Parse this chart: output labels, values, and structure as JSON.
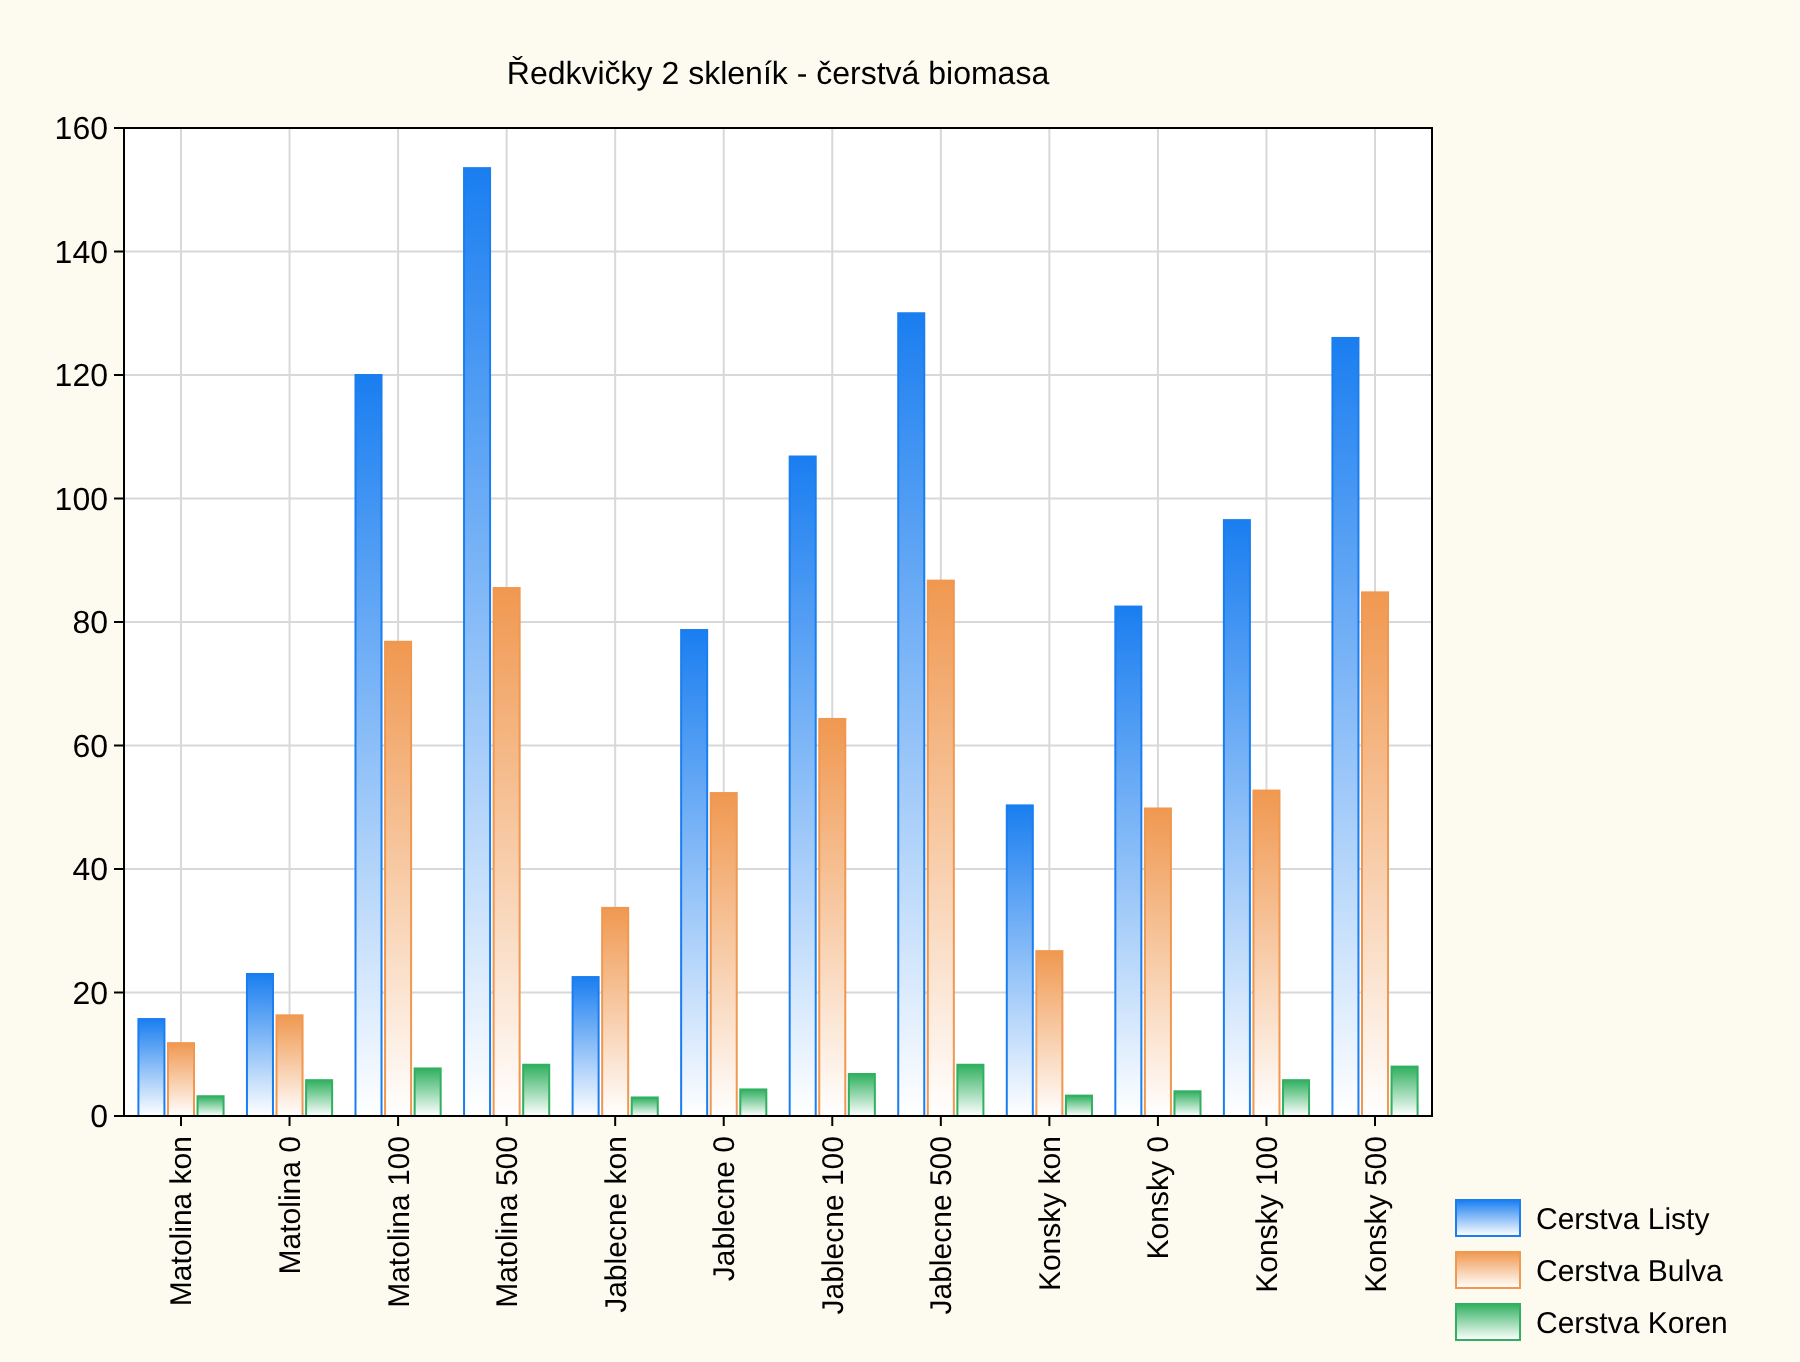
{
  "chart_data": {
    "type": "bar",
    "title": "Ředkvičky 2 skleník - čerstvá biomasa",
    "categories": [
      "Matolina kon",
      "Matolina 0",
      "Matolina 100",
      "Matolina 500",
      "Jablecne kon",
      "Jablecne 0",
      "Jablecne 100",
      "Jablecne 500",
      "Konsky kon",
      "Konsky 0",
      "Konsky 100",
      "Konsky 500"
    ],
    "series": [
      {
        "name": "Cerstva Listy",
        "color": "#1a7ef0",
        "values": [
          15.7,
          23,
          120,
          153.5,
          22.5,
          78.7,
          106.8,
          130,
          50.3,
          82.5,
          96.5,
          126
        ]
      },
      {
        "name": "Cerstva Bulva",
        "color": "#f09850",
        "values": [
          11.8,
          16.3,
          76.8,
          85.5,
          33.7,
          52.3,
          64.3,
          86.7,
          26.7,
          49.8,
          52.7,
          84.8
        ]
      },
      {
        "name": "Cerstva Koren",
        "color": "#30b060",
        "values": [
          3.2,
          5.8,
          7.7,
          8.3,
          3,
          4.3,
          6.8,
          8.3,
          3.3,
          4,
          5.8,
          8
        ]
      }
    ],
    "ylim": [
      0,
      160
    ],
    "yticks": [
      0,
      20,
      40,
      60,
      80,
      100,
      120,
      140,
      160
    ],
    "grid": true,
    "legend": "bottom right"
  }
}
